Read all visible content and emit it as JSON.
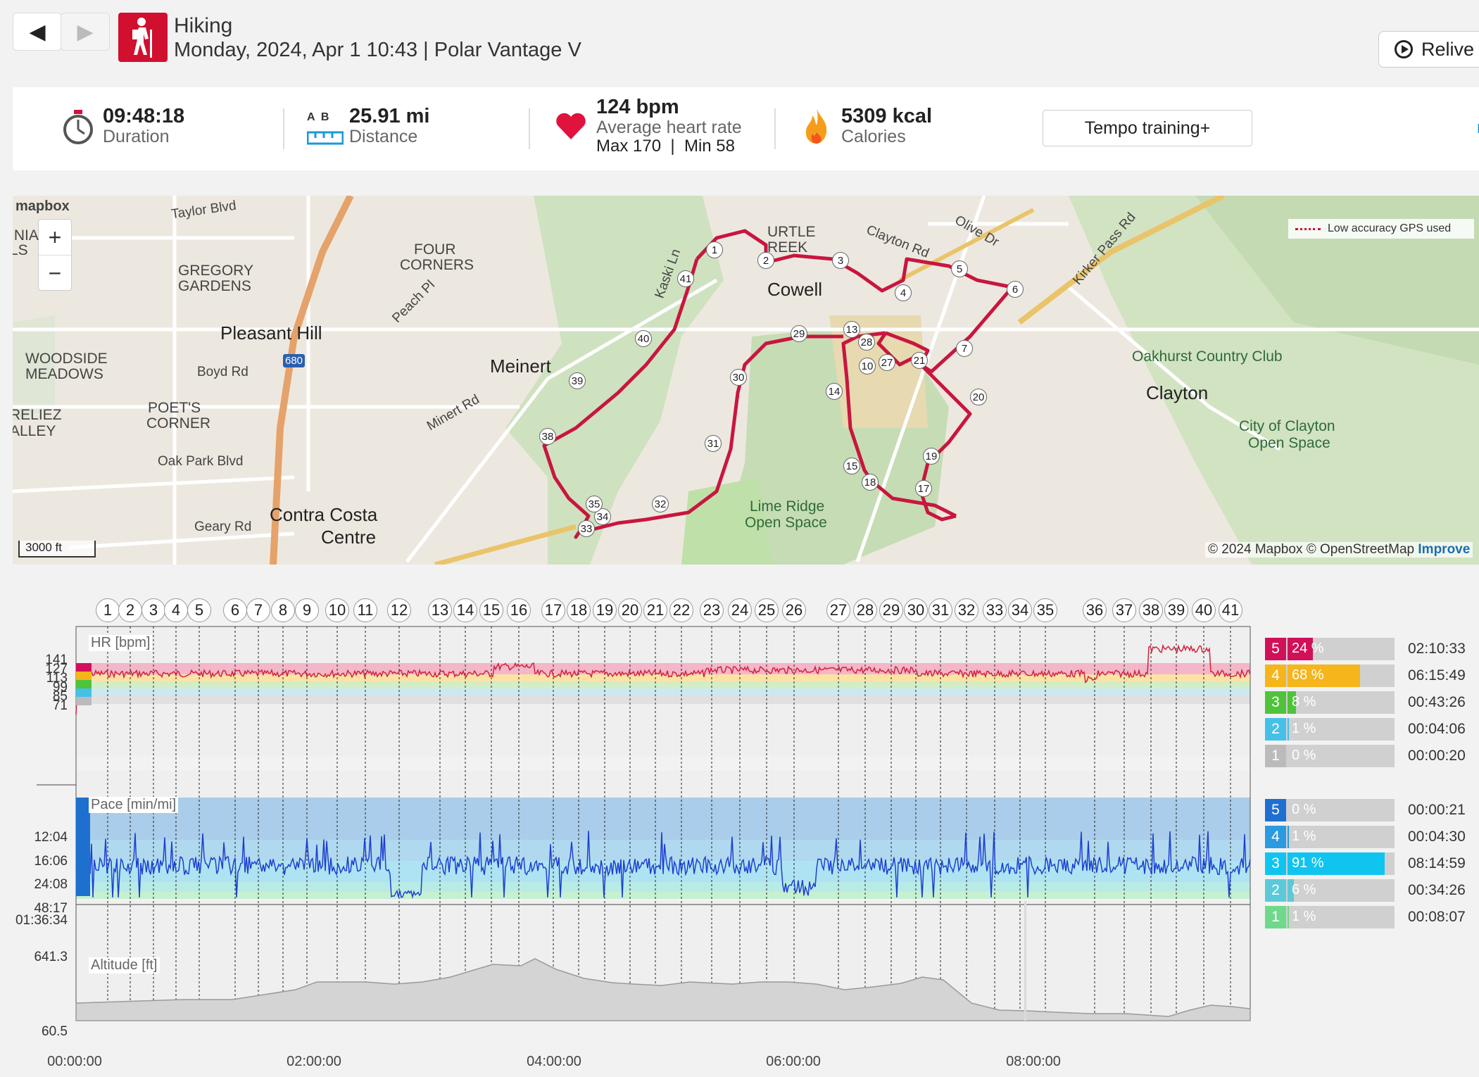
{
  "header": {
    "back_icon": "back-arrow-icon",
    "forward_icon": "forward-arrow-icon",
    "sport": "Hiking",
    "subtitle": "Monday, 2024, Apr 1 10:43 | Polar Vantage V",
    "relive_label": "Relive"
  },
  "summary": {
    "duration_value": "09:48:18",
    "duration_label": "Duration",
    "distance_ab": "A  B",
    "distance_value": "25.91 mi",
    "distance_label": "Distance",
    "hr_value": "124 bpm",
    "hr_label": "Average heart rate",
    "hr_maxmin": "Max 170  |  Min 58",
    "calories_value": "5309 kcal",
    "calories_label": "Calories",
    "benefit_button": "Tempo training+",
    "more_link": "m"
  },
  "map": {
    "logo": "mapbox",
    "gps_legend": "Low accuracy GPS used",
    "scale": "3000 ft",
    "attribution": "© 2024 Mapbox © OpenStreetMap",
    "improve": "Improve",
    "labels": [
      {
        "text": "Taylor Blvd",
        "cls": "street"
      },
      {
        "text": "GREGORY",
        "cls": ""
      },
      {
        "text": "GARDENS",
        "cls": ""
      },
      {
        "text": "FOUR",
        "cls": ""
      },
      {
        "text": "CORNERS",
        "cls": ""
      },
      {
        "text": "Pleasant Hill",
        "cls": "big"
      },
      {
        "text": "WOODSIDE",
        "cls": ""
      },
      {
        "text": "MEADOWS",
        "cls": ""
      },
      {
        "text": "Boyd Rd",
        "cls": "street"
      },
      {
        "text": "POET'S",
        "cls": ""
      },
      {
        "text": "CORNER",
        "cls": ""
      },
      {
        "text": "Oak Park Blvd",
        "cls": "street"
      },
      {
        "text": "Geary Rd",
        "cls": "street"
      },
      {
        "text": "Contra Costa",
        "cls": "big"
      },
      {
        "text": "Centre",
        "cls": "big"
      },
      {
        "text": "Meinert",
        "cls": "big"
      },
      {
        "text": "Cowell",
        "cls": "big"
      },
      {
        "text": "Oakhurst Country Club",
        "cls": "green"
      },
      {
        "text": "Clayton",
        "cls": "big"
      },
      {
        "text": "City of Clayton",
        "cls": "green"
      },
      {
        "text": "Open Space",
        "cls": "green"
      },
      {
        "text": "Lime Ridge",
        "cls": "green"
      },
      {
        "text": "Open Space",
        "cls": "green"
      },
      {
        "text": "Clayton Rd",
        "cls": "street"
      },
      {
        "text": "Kirker Pass Rd",
        "cls": "street"
      },
      {
        "text": "Olive Dr",
        "cls": "street"
      },
      {
        "text": "Minert Rd",
        "cls": "street"
      },
      {
        "text": "Peach Pl",
        "cls": "street"
      },
      {
        "text": "Kaski Ln",
        "cls": "street"
      },
      {
        "text": "680",
        "cls": ""
      },
      {
        "text": "INIA",
        "cls": ""
      },
      {
        "text": "LS",
        "cls": ""
      },
      {
        "text": "RELIEZ",
        "cls": ""
      },
      {
        "text": "ALLEY",
        "cls": ""
      },
      {
        "text": "URTLE",
        "cls": ""
      },
      {
        "text": "REEK",
        "cls": ""
      }
    ],
    "markers": [
      "1",
      "2",
      "3",
      "4",
      "5",
      "6",
      "7",
      "10",
      "13",
      "14",
      "15",
      "17",
      "18",
      "19",
      "20",
      "21",
      "27",
      "28",
      "29",
      "30",
      "31",
      "32",
      "33",
      "34",
      "35",
      "38",
      "39",
      "40",
      "41"
    ]
  },
  "laps": [
    "1",
    "2",
    "3",
    "4",
    "5",
    "6",
    "7",
    "8",
    "9",
    "10",
    "11",
    "12",
    "13",
    "14",
    "15",
    "16",
    "17",
    "18",
    "19",
    "20",
    "21",
    "22",
    "23",
    "24",
    "25",
    "26",
    "27",
    "28",
    "29",
    "30",
    "31",
    "32",
    "33",
    "34",
    "35",
    "36",
    "37",
    "38",
    "39",
    "40",
    "41"
  ],
  "hr_chart": {
    "label": "HR [bpm]",
    "ticks": [
      "141",
      "127",
      "113",
      "99",
      "85",
      "71"
    ],
    "zones": [
      {
        "num": "5",
        "pct": "24 %",
        "fill": 0.24,
        "color": "#d1105a",
        "time": "02:10:33"
      },
      {
        "num": "4",
        "pct": "68 %",
        "fill": 0.68,
        "color": "#f5b51b",
        "time": "06:15:49"
      },
      {
        "num": "3",
        "pct": "8 %",
        "fill": 0.08,
        "color": "#4ec33b",
        "time": "00:43:26"
      },
      {
        "num": "2",
        "pct": "1 %",
        "fill": 0.01,
        "color": "#45c1e8",
        "time": "00:04:06"
      },
      {
        "num": "1",
        "pct": "0 %",
        "fill": 0.0,
        "color": "#bbbbbb",
        "time": "00:00:20"
      }
    ]
  },
  "pace_chart": {
    "label": "Pace [min/mi]",
    "ticks": [
      "12:04",
      "16:06",
      "24:08",
      "48:17",
      "01:36:34"
    ],
    "zones": [
      {
        "num": "5",
        "pct": "0 %",
        "fill": 0.0,
        "color": "#1f6fd0",
        "time": "00:00:21"
      },
      {
        "num": "4",
        "pct": "1 %",
        "fill": 0.01,
        "color": "#2b9ae0",
        "time": "00:04:30"
      },
      {
        "num": "3",
        "pct": "91 %",
        "fill": 0.91,
        "color": "#10c4f0",
        "time": "08:14:59"
      },
      {
        "num": "2",
        "pct": "6 %",
        "fill": 0.06,
        "color": "#5cc9d8",
        "time": "00:34:26"
      },
      {
        "num": "1",
        "pct": "1 %",
        "fill": 0.01,
        "color": "#6ed98a",
        "time": "00:08:07"
      }
    ]
  },
  "altitude_chart": {
    "label": "Altitude [ft]",
    "ticks": [
      "641.3",
      "60.5"
    ]
  },
  "time_axis": [
    "00:00:00",
    "02:00:00",
    "04:00:00",
    "06:00:00",
    "08:00:00"
  ],
  "colors": {
    "accent": "#d1103c",
    "route": "#c8163f"
  }
}
